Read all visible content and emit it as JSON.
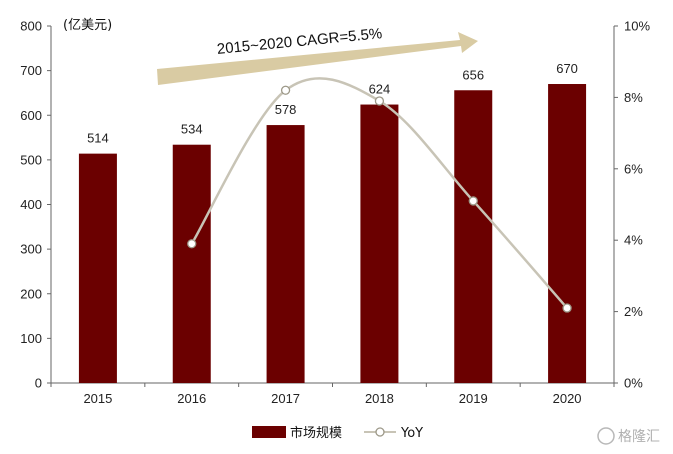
{
  "chart_data": {
    "type": "bar",
    "title": "",
    "categories": [
      "2015",
      "2016",
      "2017",
      "2018",
      "2019",
      "2020"
    ],
    "series": [
      {
        "name": "市场规模",
        "type": "bar",
        "axis": "left",
        "color": "#6b0000",
        "values": [
          514,
          534,
          578,
          624,
          656,
          670
        ]
      },
      {
        "name": "YoY",
        "type": "line",
        "axis": "right",
        "color": "#c8c4b6",
        "values": [
          null,
          3.9,
          8.2,
          7.9,
          5.1,
          2.1
        ]
      }
    ],
    "ylabel": "(亿美元)",
    "ylim": [
      0,
      800
    ],
    "yticks": [
      "0",
      "100",
      "200",
      "300",
      "400",
      "500",
      "600",
      "700",
      "800"
    ],
    "y2lim": [
      0,
      10
    ],
    "y2ticks": [
      "0%",
      "2%",
      "4%",
      "6%",
      "8%",
      "10%"
    ],
    "data_labels": [
      "514",
      "534",
      "578",
      "624",
      "656",
      "670"
    ],
    "annotation": "2015~2020 CAGR=5.5%",
    "arrow_color": "#d9cba3",
    "legend": {
      "position": "bottom",
      "items": [
        "市场规模",
        "YoY"
      ]
    },
    "grid": false
  },
  "watermark": "格隆汇"
}
